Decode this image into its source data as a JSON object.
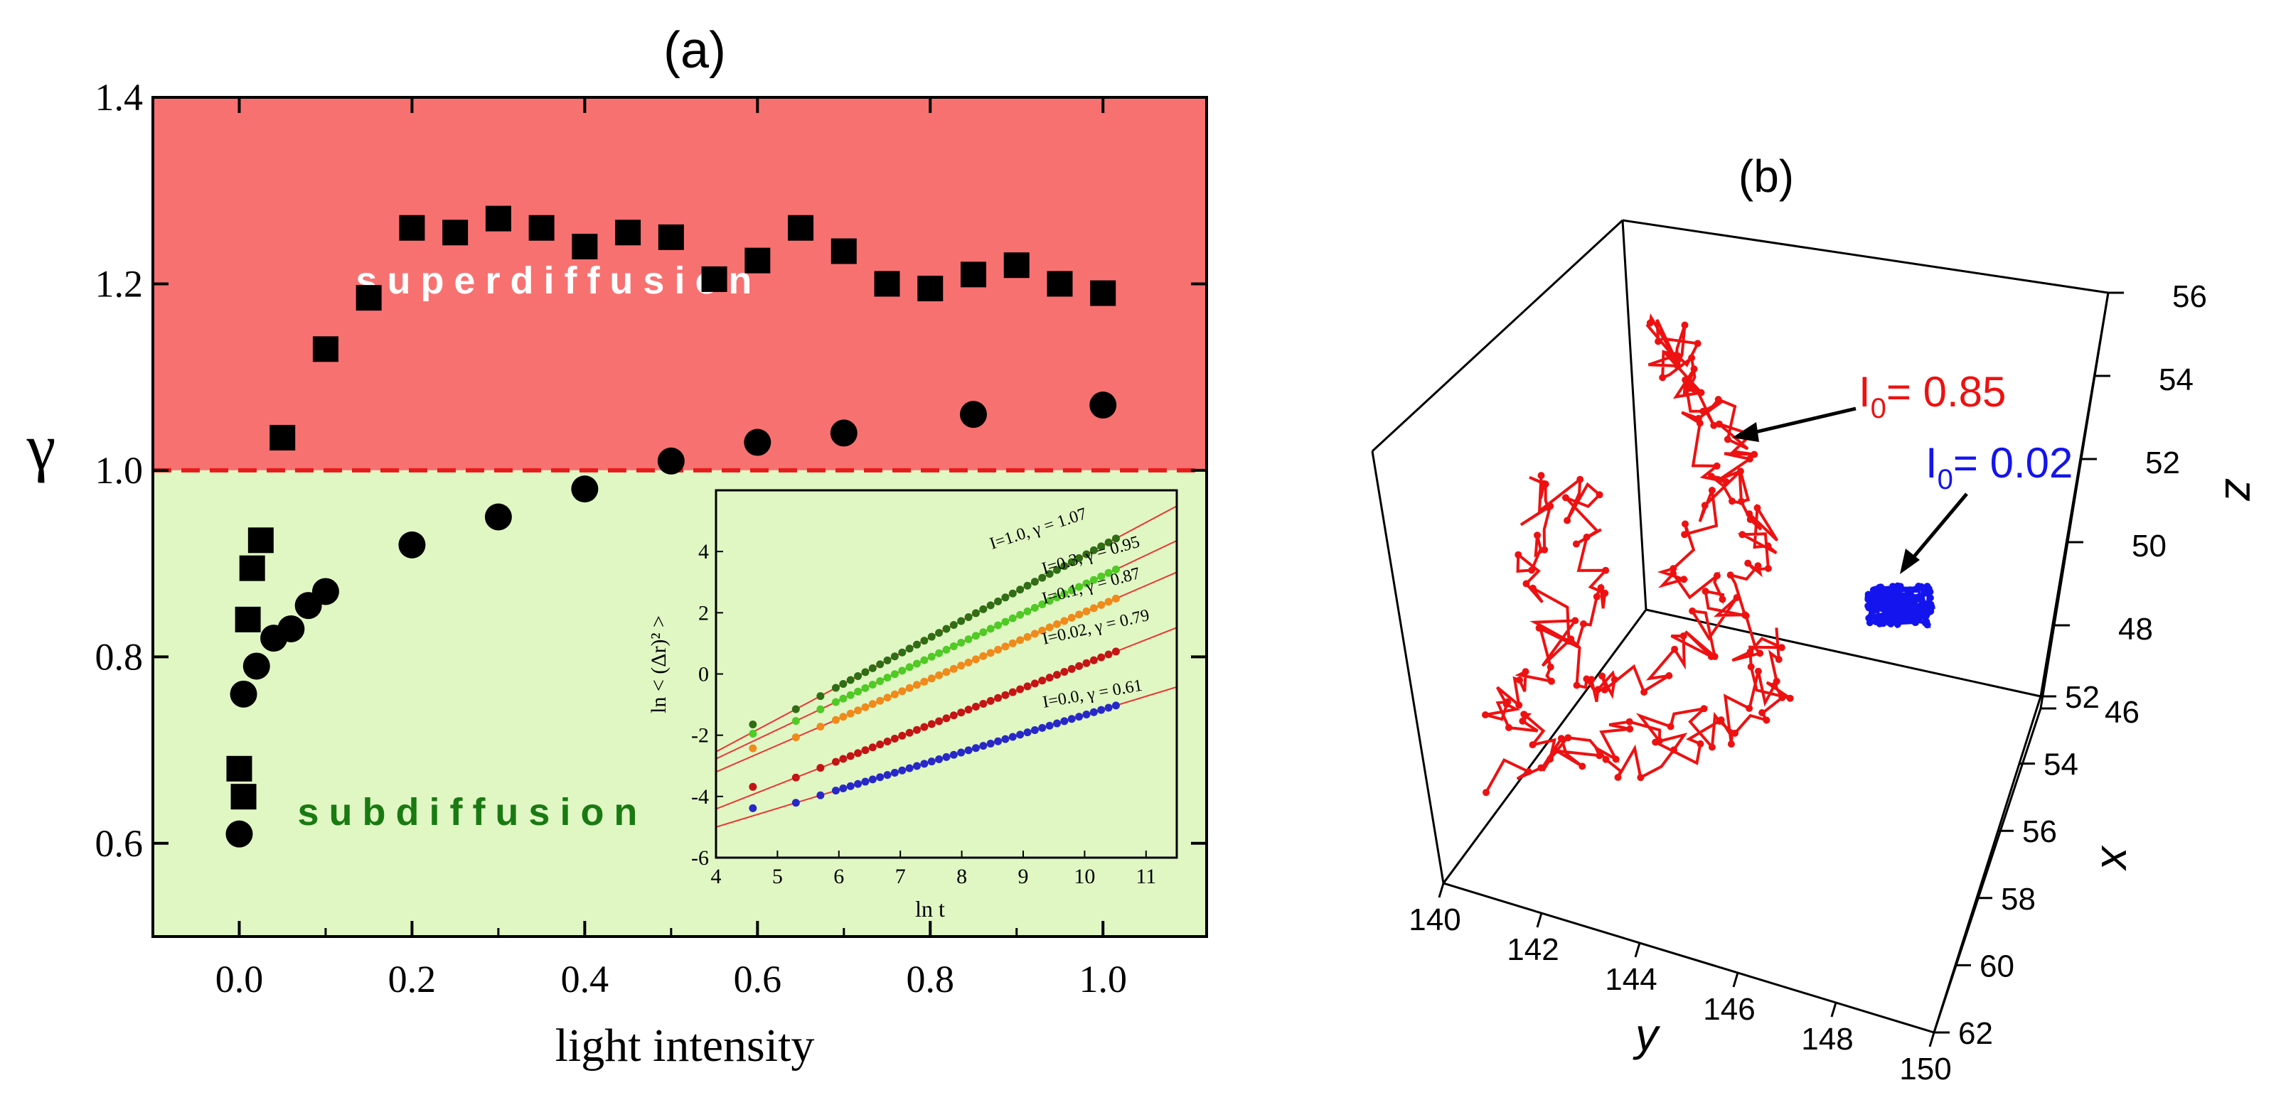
{
  "chart_data": [
    {
      "id": "a",
      "type": "scatter",
      "panel_label": "(a)",
      "xlabel": "light intensity",
      "ylabel": "γ",
      "xlim": [
        -0.1,
        1.12
      ],
      "ylim": [
        0.5,
        1.4
      ],
      "xticks": [
        "0.0",
        "0.2",
        "0.4",
        "0.6",
        "0.8",
        "1.0"
      ],
      "yticks": [
        "0.6",
        "0.8",
        "1.0",
        "1.2",
        "1.4"
      ],
      "threshold": 1.0,
      "regions": [
        {
          "name": "superdiffusion",
          "label": "superdiffusion",
          "from": 1.0,
          "to": 1.4,
          "color": "#f87171",
          "text_color": "#ffffff"
        },
        {
          "name": "subdiffusion",
          "label": "subdiffusion",
          "from": 0.5,
          "to": 1.0,
          "color": "#e0f7c4",
          "text_color": "#1a7a12"
        }
      ],
      "series": [
        {
          "name": "squares",
          "marker": "square",
          "x": [
            0.0,
            0.005,
            0.01,
            0.015,
            0.025,
            0.05,
            0.1,
            0.15,
            0.2,
            0.25,
            0.3,
            0.35,
            0.4,
            0.45,
            0.5,
            0.55,
            0.6,
            0.65,
            0.7,
            0.75,
            0.8,
            0.85,
            0.9,
            0.95,
            1.0
          ],
          "y": [
            0.68,
            0.65,
            0.84,
            0.895,
            0.925,
            1.035,
            1.13,
            1.185,
            1.26,
            1.255,
            1.27,
            1.26,
            1.24,
            1.255,
            1.25,
            1.205,
            1.225,
            1.26,
            1.235,
            1.2,
            1.195,
            1.21,
            1.22,
            1.2,
            1.19
          ]
        },
        {
          "name": "circles",
          "marker": "circle",
          "x": [
            0.0,
            0.005,
            0.02,
            0.04,
            0.06,
            0.08,
            0.1,
            0.2,
            0.3,
            0.4,
            0.5,
            0.6,
            0.7,
            0.85,
            1.0
          ],
          "y": [
            0.61,
            0.76,
            0.79,
            0.82,
            0.83,
            0.855,
            0.87,
            0.92,
            0.95,
            0.98,
            1.01,
            1.03,
            1.04,
            1.06,
            1.07
          ]
        }
      ]
    },
    {
      "id": "inset",
      "type": "scatter",
      "xlabel": "ln t",
      "ylabel": "ln < (Δr)² >",
      "xlim": [
        4,
        11.5
      ],
      "ylim": [
        -6,
        6
      ],
      "xticks": [
        "4",
        "5",
        "6",
        "7",
        "8",
        "9",
        "10",
        "11"
      ],
      "yticks": [
        "-6",
        "-4",
        "-2",
        "0",
        "2",
        "4"
      ],
      "series": [
        {
          "label": "I=1.0, γ = 1.07",
          "gamma": 1.07,
          "y_at_x4": -2.54,
          "color": "#2f6e14"
        },
        {
          "label": "I=0.3, γ = 0.95",
          "gamma": 0.95,
          "y_at_x4": -2.77,
          "color": "#4ecb24"
        },
        {
          "label": "I=0.1, γ = 0.87",
          "gamma": 0.87,
          "y_at_x4": -3.2,
          "color": "#f08a1a"
        },
        {
          "label": "I=0.02, γ = 0.79",
          "gamma": 0.79,
          "y_at_x4": -4.41,
          "color": "#c41414"
        },
        {
          "label": "I=0.0, γ = 0.61",
          "gamma": 0.61,
          "y_at_x4": -5.0,
          "color": "#2828c8"
        }
      ]
    },
    {
      "id": "b",
      "type": "scatter3d",
      "panel_label": "(b)",
      "xlabel": "x",
      "ylabel": "y",
      "zlabel": "z",
      "xlim": [
        52,
        62
      ],
      "ylim": [
        140,
        150
      ],
      "zlim": [
        46,
        56
      ],
      "xticks": [
        "52",
        "54",
        "56",
        "58",
        "60",
        "62"
      ],
      "yticks": [
        "140",
        "142",
        "144",
        "146",
        "148",
        "150"
      ],
      "zticks": [
        "46",
        "48",
        "50",
        "52",
        "54",
        "56"
      ],
      "series": [
        {
          "name": "red-trajectory",
          "label": "I",
          "sub": "0",
          "value_text": "= 0.85",
          "color": "#ee1111"
        },
        {
          "name": "blue-trajectory",
          "label": "I",
          "sub": "0",
          "value_text": "= 0.02",
          "color": "#1414ee"
        }
      ]
    }
  ]
}
